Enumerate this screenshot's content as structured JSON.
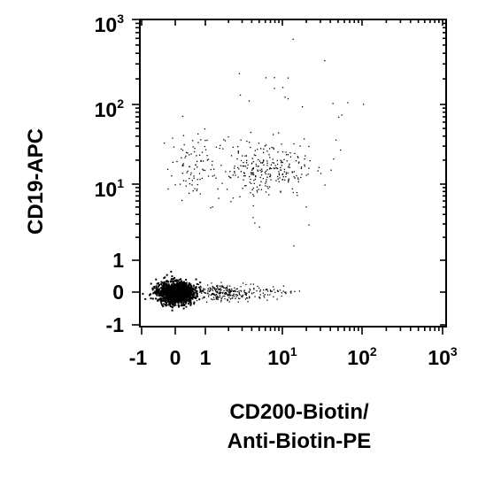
{
  "chart_data": {
    "type": "scatter",
    "title": "",
    "x_scale": "biexponential",
    "y_scale": "biexponential",
    "xlabel": [
      "CD200-Biotin/",
      "Anti-Biotin-PE"
    ],
    "ylabel": "CD19-APC",
    "xlim": [
      -1,
      1000
    ],
    "ylim": [
      -1,
      1000
    ],
    "x_ticks": [
      {
        "value": -1,
        "base": "-1",
        "exp": ""
      },
      {
        "value": 0,
        "base": "0",
        "exp": ""
      },
      {
        "value": 1,
        "base": "1",
        "exp": ""
      },
      {
        "value": 10,
        "base": "10",
        "exp": "1"
      },
      {
        "value": 100,
        "base": "10",
        "exp": "2"
      },
      {
        "value": 1000,
        "base": "10",
        "exp": "3"
      }
    ],
    "y_ticks": [
      {
        "value": -1,
        "base": "-1",
        "exp": ""
      },
      {
        "value": 0,
        "base": "0",
        "exp": ""
      },
      {
        "value": 1,
        "base": "1",
        "exp": ""
      },
      {
        "value": 10,
        "base": "10",
        "exp": "1"
      },
      {
        "value": 100,
        "base": "10",
        "exp": "2"
      },
      {
        "value": 1000,
        "base": "10",
        "exp": "3"
      }
    ],
    "series": [
      {
        "values": [
          {
            "x": 0.0,
            "y": 0.0,
            "n": 1400
          },
          {
            "x": 1.5,
            "y": 0.0,
            "n": 220
          },
          {
            "x": 5.0,
            "y": 0.0,
            "n": 80
          }
        ]
      },
      {
        "values": [
          {
            "x": 6.0,
            "y": 15.0,
            "n": 260
          },
          {
            "x": 0.6,
            "y": 18.0,
            "n": 90
          }
        ]
      },
      {
        "values": [
          {
            "x": 8.0,
            "y": 40.0,
            "n": 40
          }
        ]
      }
    ],
    "grid": false,
    "legend": "none",
    "marker_color": "#000000"
  }
}
